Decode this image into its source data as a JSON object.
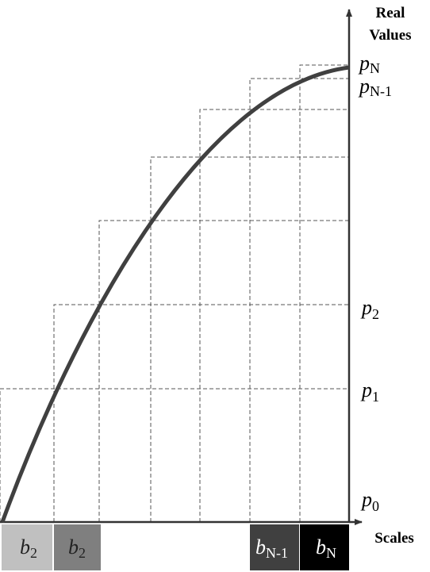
{
  "axis_labels": {
    "y": [
      "Real",
      "Values"
    ],
    "x": "Scales"
  },
  "value_labels": [
    {
      "base": "p",
      "sub": "N"
    },
    {
      "base": "p",
      "sub": "N-1"
    },
    {
      "base": "p",
      "sub": "2"
    },
    {
      "base": "p",
      "sub": "1"
    },
    {
      "base": "p",
      "sub": "0"
    }
  ],
  "scale_boxes": [
    {
      "base": "b",
      "sub": "2"
    },
    {
      "base": "b",
      "sub": "2"
    },
    {
      "base": "b",
      "sub": "N-1"
    },
    {
      "base": "b",
      "sub": "N"
    }
  ]
}
